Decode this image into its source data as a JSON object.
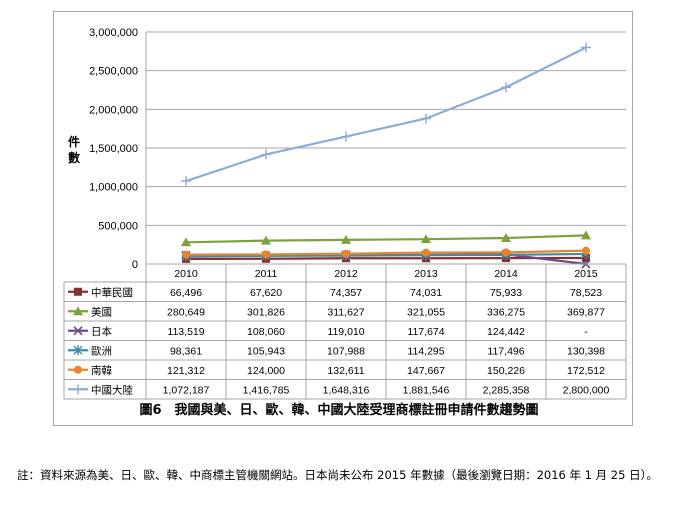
{
  "chart_data": {
    "type": "line",
    "title": "",
    "ylabel": "件數",
    "ylim": [
      0,
      3000000
    ],
    "yticks": [
      "3,000,000",
      "2,500,000",
      "2,000,000",
      "1,500,000",
      "1,000,000",
      "500,000",
      "0"
    ],
    "ytick_values": [
      3000000,
      2500000,
      2000000,
      1500000,
      1000000,
      500000,
      0
    ],
    "categories": [
      "2010",
      "2011",
      "2012",
      "2013",
      "2014",
      "2015"
    ],
    "series": [
      {
        "name": "中華民國",
        "color": "#8b2e2e",
        "marker": "square",
        "values": [
          66496,
          67620,
          74357,
          74031,
          75933,
          78523
        ],
        "labels": [
          "66,496",
          "67,620",
          "74,357",
          "74,031",
          "75,933",
          "78,523"
        ]
      },
      {
        "name": "美國",
        "color": "#7fa13b",
        "marker": "triangle",
        "values": [
          280649,
          301826,
          311627,
          321055,
          336275,
          369877
        ],
        "labels": [
          "280,649",
          "301,826",
          "311,627",
          "321,055",
          "336,275",
          "369,877"
        ]
      },
      {
        "name": "日本",
        "color": "#6b4c8a",
        "marker": "x",
        "values": [
          113519,
          108060,
          119010,
          117674,
          124442,
          0
        ],
        "labels": [
          "113,519",
          "108,060",
          "119,010",
          "117,674",
          "124,442",
          "-"
        ]
      },
      {
        "name": "歐洲",
        "color": "#3c8dad",
        "marker": "star",
        "values": [
          98361,
          105943,
          107988,
          114295,
          117496,
          130398
        ],
        "labels": [
          "98,361",
          "105,943",
          "107,988",
          "114,295",
          "117,496",
          "130,398"
        ]
      },
      {
        "name": "南韓",
        "color": "#e8852b",
        "marker": "circle",
        "values": [
          121312,
          124000,
          132611,
          147667,
          150226,
          172512
        ],
        "labels": [
          "121,312",
          "124,000",
          "132,611",
          "147,667",
          "150,226",
          "172,512"
        ]
      },
      {
        "name": "中國大陸",
        "color": "#8eaadb",
        "marker": "plus",
        "values": [
          1072187,
          1416785,
          1648316,
          1881546,
          2285358,
          2800000
        ],
        "labels": [
          "1,072,187",
          "1,416,785",
          "1,648,316",
          "1,881,546",
          "2,285,358",
          "2,800,000"
        ]
      }
    ],
    "grid": true,
    "legend": "data-table"
  },
  "caption": "圖6　我國與美、日、歐、韓、中國大陸受理商標註冊申請件數趨勢圖",
  "footnote": "註：資料來源為美、日、歐、韓、中商標主管機關網站。日本尚未公布 2015 年數據（最後瀏覽日期：2016 年 1 月 25 日）。"
}
